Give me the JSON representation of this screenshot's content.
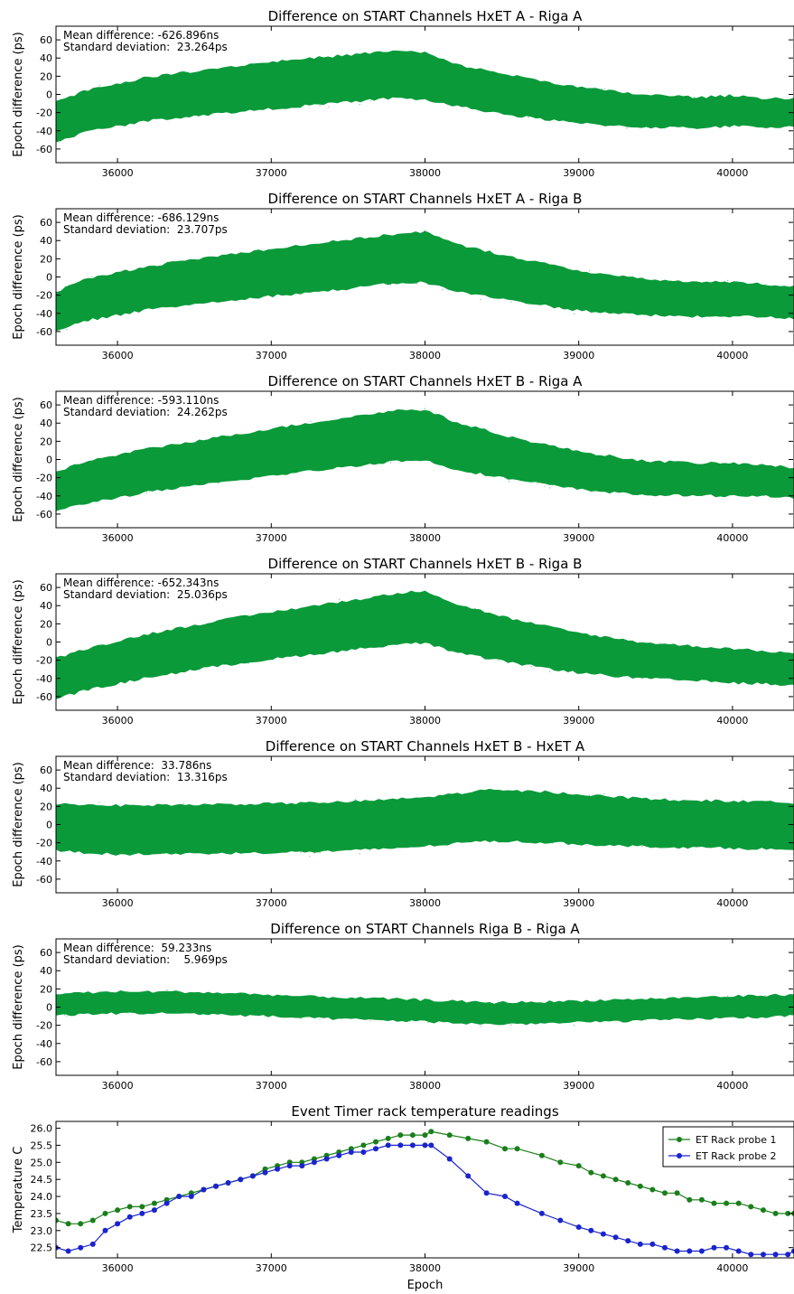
{
  "chart_data": [
    {
      "type": "scatter",
      "title": "Difference on START Channels HxET A - Riga A",
      "ylabel": "Epoch difference (ps)",
      "xlabel": "",
      "xlim": [
        35600,
        40400
      ],
      "ylim": [
        -75,
        75
      ],
      "xticks": [
        36000,
        37000,
        38000,
        39000,
        40000
      ],
      "yticks": [
        -60,
        -40,
        -20,
        0,
        20,
        40,
        60
      ],
      "annotations": [
        "Mean difference: -626.896ns",
        "Standard deviation:  23.264ps"
      ],
      "color": "#0a9a3a",
      "band": {
        "x": [
          35600,
          35800,
          36200,
          36600,
          37000,
          37400,
          37800,
          38000,
          38200,
          38600,
          39000,
          39400,
          39800,
          40000,
          40200,
          40400
        ],
        "center": [
          -30,
          -18,
          -5,
          3,
          10,
          16,
          22,
          20,
          10,
          -2,
          -12,
          -18,
          -20,
          -18,
          -20,
          -20
        ],
        "halfwidth": [
          22,
          23,
          24,
          25,
          26,
          26,
          26,
          26,
          23,
          22,
          20,
          18,
          17,
          17,
          16,
          16
        ]
      }
    },
    {
      "type": "scatter",
      "title": "Difference on START Channels HxET A - Riga B",
      "ylabel": "Epoch difference (ps)",
      "xlabel": "",
      "xlim": [
        35600,
        40400
      ],
      "ylim": [
        -75,
        75
      ],
      "xticks": [
        36000,
        37000,
        38000,
        39000,
        40000
      ],
      "yticks": [
        -60,
        -40,
        -20,
        0,
        20,
        40,
        60
      ],
      "annotations": [
        "Mean difference: -686.129ns",
        "Standard deviation:  23.707ps"
      ],
      "color": "#0a9a3a",
      "band": {
        "x": [
          35600,
          35800,
          36200,
          36600,
          37000,
          37400,
          37800,
          38000,
          38200,
          38600,
          39000,
          39400,
          39800,
          40000,
          40200,
          40400
        ],
        "center": [
          -38,
          -25,
          -12,
          -3,
          5,
          12,
          20,
          22,
          10,
          -3,
          -15,
          -22,
          -25,
          -24,
          -26,
          -28
        ],
        "halfwidth": [
          22,
          23,
          24,
          25,
          26,
          27,
          27,
          28,
          26,
          24,
          22,
          20,
          19,
          19,
          18,
          18
        ]
      }
    },
    {
      "type": "scatter",
      "title": "Difference on START Channels HxET B - Riga A",
      "ylabel": "Epoch difference (ps)",
      "xlabel": "",
      "xlim": [
        35600,
        40400
      ],
      "ylim": [
        -75,
        75
      ],
      "xticks": [
        36000,
        37000,
        38000,
        39000,
        40000
      ],
      "yticks": [
        -60,
        -40,
        -20,
        0,
        20,
        40,
        60
      ],
      "annotations": [
        "Mean difference: -593.110ns",
        "Standard deviation:  24.262ps"
      ],
      "color": "#0a9a3a",
      "band": {
        "x": [
          35600,
          35800,
          36200,
          36600,
          37000,
          37400,
          37800,
          38000,
          38200,
          38600,
          39000,
          39400,
          39800,
          40000,
          40200,
          40400
        ],
        "center": [
          -35,
          -25,
          -12,
          -2,
          8,
          17,
          26,
          27,
          15,
          0,
          -12,
          -20,
          -22,
          -22,
          -23,
          -26
        ],
        "halfwidth": [
          22,
          23,
          24,
          25,
          26,
          27,
          28,
          28,
          26,
          23,
          21,
          19,
          18,
          18,
          17,
          17
        ]
      }
    },
    {
      "type": "scatter",
      "title": "Difference on START Channels HxET B - Riga B",
      "ylabel": "Epoch difference (ps)",
      "xlabel": "",
      "xlim": [
        35600,
        40400
      ],
      "ylim": [
        -75,
        75
      ],
      "xticks": [
        36000,
        37000,
        38000,
        39000,
        40000
      ],
      "yticks": [
        -60,
        -40,
        -20,
        0,
        20,
        40,
        60
      ],
      "annotations": [
        "Mean difference: -652.343ns",
        "Standard deviation:  25.036ps"
      ],
      "color": "#0a9a3a",
      "band": {
        "x": [
          35600,
          35800,
          36200,
          36600,
          37000,
          37400,
          37800,
          38000,
          38200,
          38600,
          39000,
          39400,
          39800,
          40000,
          40200,
          40400
        ],
        "center": [
          -40,
          -30,
          -15,
          -3,
          7,
          16,
          25,
          28,
          15,
          0,
          -12,
          -20,
          -24,
          -26,
          -28,
          -30
        ],
        "halfwidth": [
          22,
          23,
          24,
          25,
          26,
          27,
          28,
          29,
          27,
          24,
          22,
          20,
          19,
          19,
          18,
          18
        ]
      }
    },
    {
      "type": "scatter",
      "title": "Difference on START Channels HxET B - HxET A",
      "ylabel": "Epoch difference (ps)",
      "xlabel": "",
      "xlim": [
        35600,
        40400
      ],
      "ylim": [
        -75,
        75
      ],
      "xticks": [
        36000,
        37000,
        38000,
        39000,
        40000
      ],
      "yticks": [
        -60,
        -40,
        -20,
        0,
        20,
        40,
        60
      ],
      "annotations": [
        "Mean difference:  33.786ns",
        "Standard deviation:  13.316ps"
      ],
      "color": "#0a9a3a",
      "band": {
        "x": [
          35600,
          36000,
          36500,
          37000,
          37500,
          38000,
          38400,
          38800,
          39200,
          39600,
          40000,
          40400
        ],
        "center": [
          -3,
          -6,
          -5,
          -4,
          -2,
          3,
          10,
          8,
          4,
          1,
          0,
          -2
        ],
        "halfwidth": [
          26,
          27,
          27,
          27,
          27,
          27,
          28,
          28,
          27,
          26,
          26,
          26
        ]
      }
    },
    {
      "type": "scatter",
      "title": "Difference on START Channels Riga B - Riga A",
      "ylabel": "Epoch difference (ps)",
      "xlabel": "",
      "xlim": [
        35600,
        40400
      ],
      "ylim": [
        -75,
        75
      ],
      "xticks": [
        36000,
        37000,
        38000,
        39000,
        40000
      ],
      "yticks": [
        -60,
        -40,
        -20,
        0,
        20,
        40,
        60
      ],
      "annotations": [
        "Mean difference:  59.233ns",
        "Standard deviation:    5.969ps"
      ],
      "color": "#0a9a3a",
      "band": {
        "x": [
          35600,
          36000,
          36400,
          36800,
          37200,
          37600,
          38000,
          38400,
          38800,
          39200,
          39600,
          40000,
          40400
        ],
        "center": [
          3,
          5,
          5,
          3,
          0,
          -2,
          -4,
          -7,
          -6,
          -4,
          -2,
          0,
          2
        ],
        "halfwidth": [
          12,
          12,
          12,
          12,
          12,
          12,
          12,
          12,
          12,
          12,
          12,
          12,
          12
        ]
      }
    },
    {
      "type": "line",
      "title": "Event Timer rack temperature readings",
      "ylabel": "Temperature C",
      "xlabel": "Epoch",
      "xlim": [
        35600,
        40400
      ],
      "ylim": [
        22.2,
        26.2
      ],
      "xticks": [
        36000,
        37000,
        38000,
        39000,
        40000
      ],
      "yticks": [
        22.5,
        23.0,
        23.5,
        24.0,
        24.5,
        25.0,
        25.5,
        26.0
      ],
      "ytick_labels": [
        "22.5",
        "23.0",
        "23.5",
        "24.0",
        "24.5",
        "25.0",
        "25.5",
        "26.0"
      ],
      "legend": "top-right",
      "series": [
        {
          "name": "ET Rack probe 1",
          "color": "#1a7f1a",
          "x": [
            35600,
            35680,
            35760,
            35840,
            35920,
            36000,
            36080,
            36160,
            36240,
            36320,
            36400,
            36480,
            36560,
            36640,
            36720,
            36800,
            36880,
            36960,
            37040,
            37120,
            37200,
            37280,
            37360,
            37440,
            37520,
            37600,
            37680,
            37760,
            37840,
            37920,
            38000,
            38040,
            38160,
            38280,
            38400,
            38520,
            38600,
            38760,
            38880,
            39000,
            39080,
            39160,
            39240,
            39320,
            39400,
            39480,
            39560,
            39640,
            39720,
            39800,
            39880,
            39960,
            40040,
            40120,
            40200,
            40280,
            40360,
            40400
          ],
          "y": [
            23.3,
            23.2,
            23.2,
            23.3,
            23.5,
            23.6,
            23.7,
            23.7,
            23.8,
            23.9,
            24.0,
            24.1,
            24.2,
            24.3,
            24.4,
            24.5,
            24.6,
            24.8,
            24.9,
            25.0,
            25.0,
            25.1,
            25.2,
            25.3,
            25.4,
            25.5,
            25.6,
            25.7,
            25.8,
            25.8,
            25.8,
            25.9,
            25.8,
            25.7,
            25.6,
            25.4,
            25.4,
            25.2,
            25.0,
            24.9,
            24.7,
            24.6,
            24.5,
            24.4,
            24.3,
            24.2,
            24.1,
            24.1,
            23.9,
            23.9,
            23.8,
            23.8,
            23.8,
            23.7,
            23.6,
            23.5,
            23.5,
            23.5
          ]
        },
        {
          "name": "ET Rack probe 2",
          "color": "#1a24cc",
          "x": [
            35600,
            35680,
            35760,
            35840,
            35920,
            36000,
            36080,
            36160,
            36240,
            36320,
            36400,
            36480,
            36560,
            36640,
            36720,
            36800,
            36880,
            36960,
            37040,
            37120,
            37200,
            37280,
            37360,
            37440,
            37520,
            37600,
            37680,
            37760,
            37840,
            37920,
            38000,
            38040,
            38160,
            38280,
            38400,
            38520,
            38600,
            38760,
            38880,
            39000,
            39080,
            39160,
            39240,
            39320,
            39400,
            39480,
            39560,
            39640,
            39720,
            39800,
            39880,
            39960,
            40040,
            40120,
            40200,
            40280,
            40360,
            40400
          ],
          "y": [
            22.5,
            22.4,
            22.5,
            22.6,
            23.0,
            23.2,
            23.4,
            23.5,
            23.6,
            23.8,
            24.0,
            24.0,
            24.2,
            24.3,
            24.4,
            24.5,
            24.6,
            24.7,
            24.8,
            24.9,
            24.9,
            25.0,
            25.1,
            25.2,
            25.3,
            25.3,
            25.4,
            25.5,
            25.5,
            25.5,
            25.5,
            25.5,
            25.1,
            24.6,
            24.1,
            24.0,
            23.8,
            23.5,
            23.3,
            23.1,
            23.0,
            22.9,
            22.8,
            22.7,
            22.6,
            22.6,
            22.5,
            22.4,
            22.4,
            22.4,
            22.5,
            22.5,
            22.4,
            22.3,
            22.3,
            22.3,
            22.3,
            22.4
          ]
        }
      ]
    }
  ]
}
